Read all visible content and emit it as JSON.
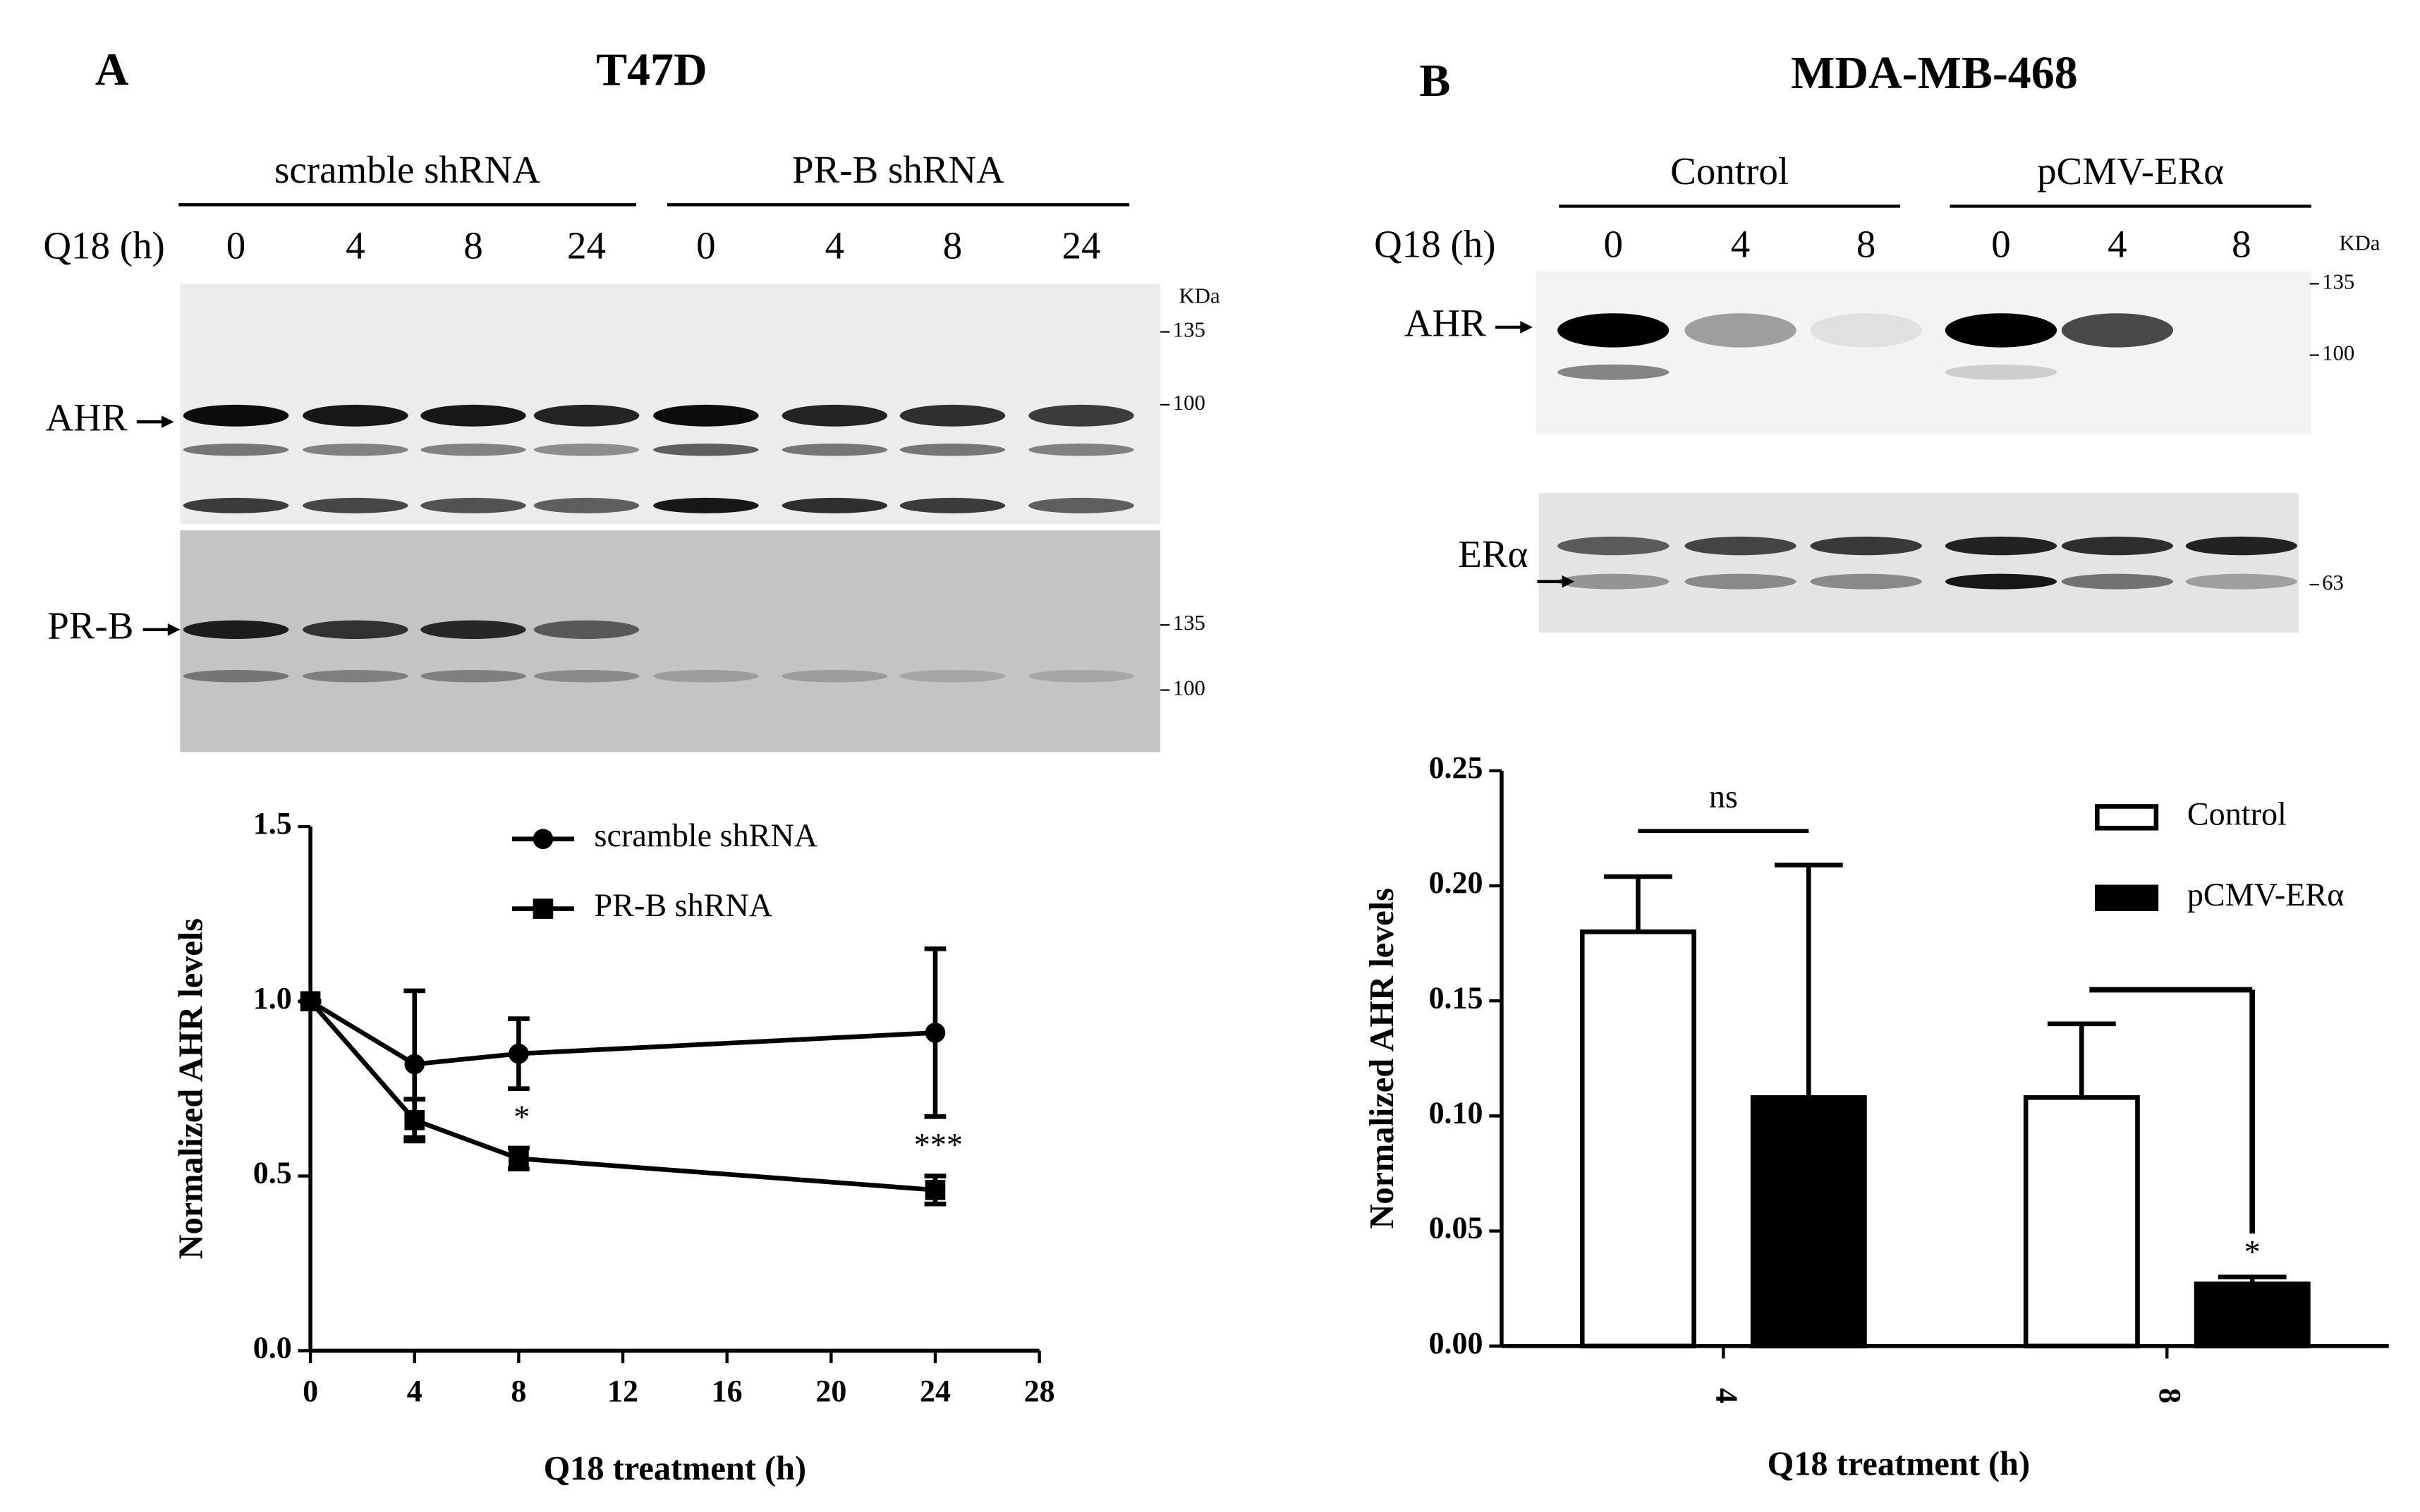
{
  "panel_a": {
    "letter": "A",
    "title": "T47D",
    "groups": [
      "scramble  shRNA",
      "PR-B shRNA"
    ],
    "lane_axis": "Q18 (h)",
    "lanes": [
      "0",
      "4",
      "8",
      "24",
      "0",
      "4",
      "8",
      "24"
    ],
    "marker_unit": "KDa",
    "blots": [
      {
        "label": "AHR",
        "markers": [
          "135",
          "100"
        ]
      },
      {
        "label": "PR-B",
        "markers": [
          "135",
          "100"
        ]
      }
    ]
  },
  "panel_b": {
    "letter": "B",
    "title": "MDA-MB-468",
    "groups": [
      "Control",
      "pCMV-ERα"
    ],
    "lane_axis": "Q18 (h)",
    "lanes": [
      "0",
      "4",
      "8",
      "0",
      "4",
      "8"
    ],
    "marker_unit": "KDa",
    "blots": [
      {
        "label": "AHR",
        "markers": [
          "135",
          "100"
        ]
      },
      {
        "label": "ERα",
        "markers": [
          "63"
        ]
      }
    ]
  },
  "chart_data": [
    {
      "type": "line",
      "xlabel": "Q18 treatment (h)",
      "ylabel": "Normalized AHR levels",
      "x": [
        0,
        4,
        8,
        24
      ],
      "xlim": [
        0,
        28
      ],
      "xticks": [
        0,
        4,
        8,
        12,
        16,
        20,
        24,
        28
      ],
      "ylim": [
        0,
        1.5
      ],
      "yticks": [
        {
          "value": 0,
          "label": "0.0"
        },
        0.5,
        {
          "value": 1,
          "label": "1.0"
        },
        1.5
      ],
      "legend": "upper right",
      "series": [
        {
          "name": "scramble shRNA",
          "color": "#000000",
          "marker": "circle",
          "values": [
            1.0,
            0.82,
            0.85,
            0.91
          ],
          "errors": [
            0,
            0.21,
            0.1,
            0.24
          ]
        },
        {
          "name": "PR-B shRNA",
          "color": "#000000",
          "marker": "square",
          "values": [
            1.0,
            0.66,
            0.55,
            0.46
          ],
          "errors": [
            0,
            0.06,
            0.03,
            0.04
          ]
        }
      ],
      "annotations": [
        {
          "text": "*",
          "x": 8
        },
        {
          "text": "***",
          "x": 24
        }
      ]
    },
    {
      "type": "bar",
      "xlabel": "Q18 treatment (h)",
      "ylabel": "Normalized AHR levels",
      "categories": [
        "4",
        "8"
      ],
      "ylim": [
        0,
        0.25
      ],
      "yticks": [
        {
          "value": 0,
          "label": "0.00"
        },
        0.05,
        {
          "value": 0.1,
          "label": "0.10"
        },
        0.15,
        {
          "value": 0.2,
          "label": "0.20"
        },
        0.25
      ],
      "legend": "upper right",
      "series": [
        {
          "name": "Control",
          "color": "#ffffff",
          "values": [
            0.18,
            0.108
          ],
          "errors": [
            0.024,
            0.032
          ]
        },
        {
          "name": "pCMV-ERα",
          "color": "#000000",
          "values": [
            0.108,
            0.027
          ],
          "errors": [
            0.101,
            0.003
          ]
        }
      ],
      "annotations": [
        {
          "text": "ns",
          "category": "4"
        },
        {
          "text": "*",
          "category": "8"
        }
      ]
    }
  ]
}
